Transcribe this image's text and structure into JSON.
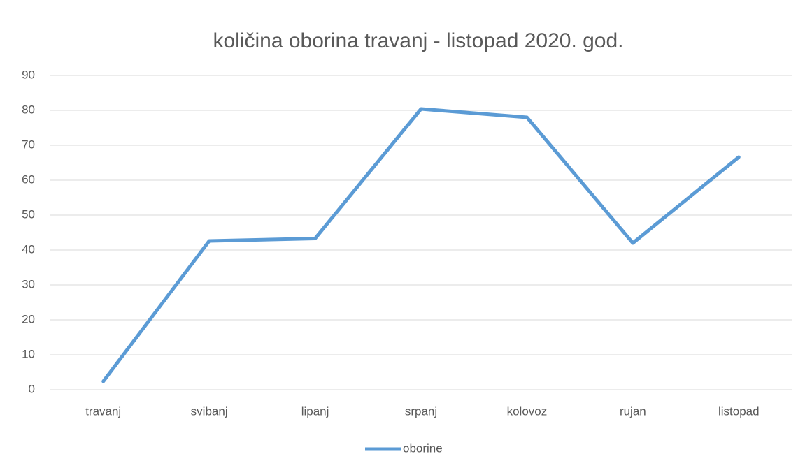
{
  "chart_data": {
    "type": "line",
    "title": "količina oborina travanj - listopad 2020. god.",
    "categories": [
      "travanj",
      "svibanj",
      "lipanj",
      "srpanj",
      "kolovoz",
      "rujan",
      "listopad"
    ],
    "series": [
      {
        "name": "oborine",
        "color": "#5b9bd5",
        "values": [
          2.4,
          42.6,
          43.3,
          80.4,
          78.0,
          42.0,
          66.6
        ]
      }
    ],
    "ylim": [
      0,
      90
    ],
    "yticks": [
      0,
      10,
      20,
      30,
      40,
      50,
      60,
      70,
      80,
      90
    ],
    "grid": true,
    "legend": "bottom"
  }
}
